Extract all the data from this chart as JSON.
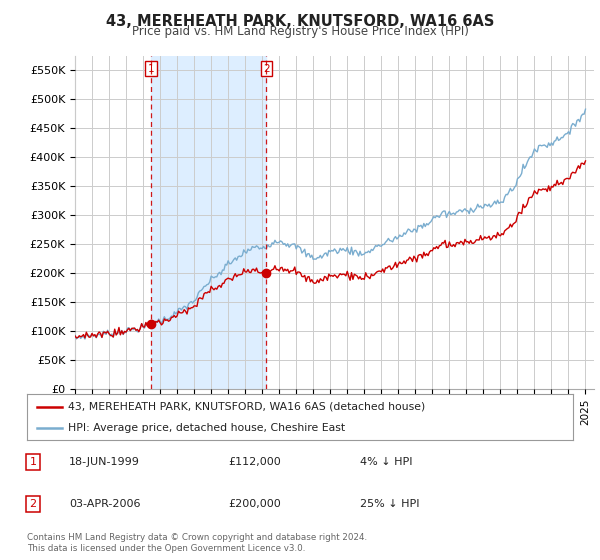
{
  "title": "43, MEREHEATH PARK, KNUTSFORD, WA16 6AS",
  "subtitle": "Price paid vs. HM Land Registry's House Price Index (HPI)",
  "ylabel_ticks": [
    "£0",
    "£50K",
    "£100K",
    "£150K",
    "£200K",
    "£250K",
    "£300K",
    "£350K",
    "£400K",
    "£450K",
    "£500K",
    "£550K"
  ],
  "ytick_vals": [
    0,
    50000,
    100000,
    150000,
    200000,
    250000,
    300000,
    350000,
    400000,
    450000,
    500000,
    550000
  ],
  "ylim": [
    0,
    575000
  ],
  "xlim_start": 1995.0,
  "xlim_end": 2025.5,
  "legend_line1": "43, MEREHEATH PARK, KNUTSFORD, WA16 6AS (detached house)",
  "legend_line2": "HPI: Average price, detached house, Cheshire East",
  "sale1_date": 1999.46,
  "sale1_price": 112000,
  "sale1_label": "1",
  "sale2_date": 2006.25,
  "sale2_price": 200000,
  "sale2_label": "2",
  "footer": "Contains HM Land Registry data © Crown copyright and database right 2024.\nThis data is licensed under the Open Government Licence v3.0.",
  "table_data": [
    [
      "1",
      "18-JUN-1999",
      "£112,000",
      "4% ↓ HPI"
    ],
    [
      "2",
      "03-APR-2006",
      "£200,000",
      "25% ↓ HPI"
    ]
  ],
  "red_color": "#cc0000",
  "blue_color": "#7aadcf",
  "shade_color": "#ddeeff",
  "background_color": "#ffffff",
  "grid_color": "#cccccc"
}
